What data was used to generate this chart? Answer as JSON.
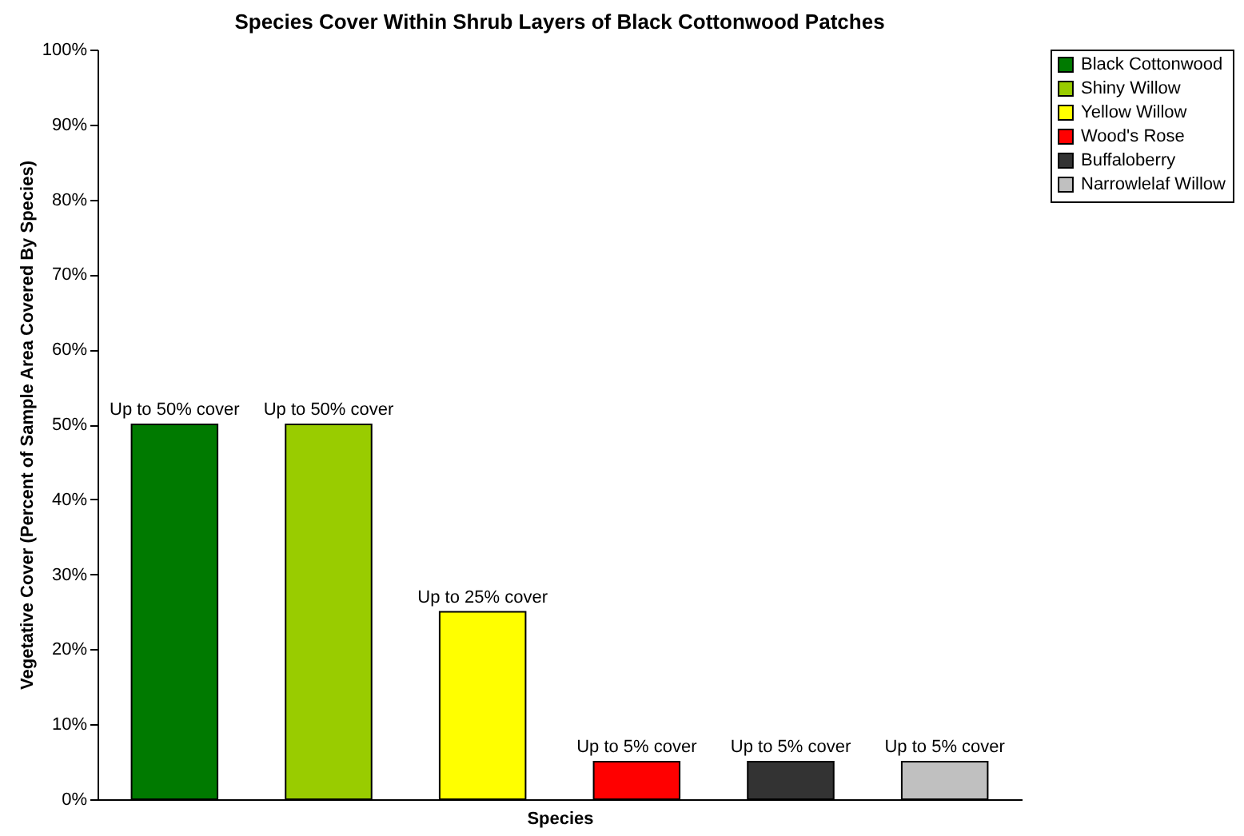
{
  "chart_data": {
    "type": "bar",
    "title": "Species Cover Within Shrub Layers of Black Cottonwood Patches",
    "xlabel": "Species",
    "ylabel": "Vegetative Cover (Percent of Sample Area Covered By Species)",
    "categories": [
      null,
      null,
      null,
      null,
      null,
      null
    ],
    "stacked": true,
    "series": [
      {
        "name": "Black Cottonwood",
        "color": "#007a00",
        "values": [
          50,
          null,
          null,
          null,
          null,
          null
        ],
        "value_labels": [
          "Up to 50% cover",
          null,
          null,
          null,
          null,
          null
        ]
      },
      {
        "name": "Shiny Willow",
        "color": "#99cc00",
        "values": [
          null,
          50,
          null,
          null,
          null,
          null
        ],
        "value_labels": [
          null,
          "Up to 50% cover",
          null,
          null,
          null,
          null
        ]
      },
      {
        "name": "Yellow Willow",
        "color": "#ffff00",
        "values": [
          null,
          null,
          25,
          null,
          null,
          null
        ],
        "value_labels": [
          null,
          null,
          "Up to 25% cover",
          null,
          null,
          null
        ]
      },
      {
        "name": "Wood's Rose",
        "color": "#ff0000",
        "values": [
          null,
          null,
          null,
          5,
          null,
          null
        ],
        "value_labels": [
          null,
          null,
          null,
          "Up to 5% cover",
          null,
          null
        ]
      },
      {
        "name": "Buffaloberry",
        "color": "#333333",
        "values": [
          null,
          null,
          null,
          null,
          5,
          null
        ],
        "value_labels": [
          null,
          null,
          null,
          null,
          "Up to 5% cover",
          null
        ]
      },
      {
        "name": "Narrowlelaf Willow",
        "color": "#c0c0c0",
        "values": [
          null,
          null,
          null,
          null,
          null,
          5
        ],
        "value_labels": [
          null,
          null,
          null,
          null,
          null,
          "Up to 5% cover"
        ]
      }
    ],
    "ylim": [
      0,
      100
    ],
    "yticks": [
      {
        "value": 0,
        "label": "0%"
      },
      {
        "value": 10,
        "label": "10%"
      },
      {
        "value": 20,
        "label": "20%"
      },
      {
        "value": 30,
        "label": "30%"
      },
      {
        "value": 40,
        "label": "40%"
      },
      {
        "value": 50,
        "label": "50%"
      },
      {
        "value": 60,
        "label": "60%"
      },
      {
        "value": 70,
        "label": "70%"
      },
      {
        "value": 80,
        "label": "80%"
      },
      {
        "value": 90,
        "label": "90%"
      },
      {
        "value": 100,
        "label": "100%"
      }
    ],
    "legend": "right"
  }
}
